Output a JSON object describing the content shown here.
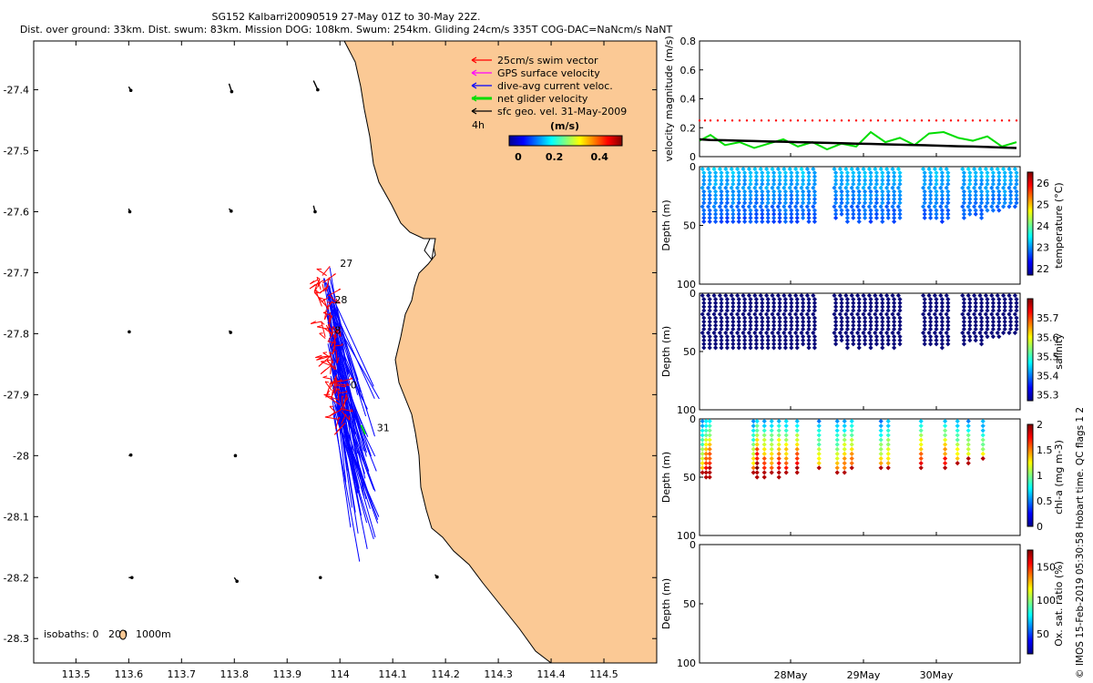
{
  "header": {
    "title_line1": "SG152 Kalbarri20090519 27-May 01Z to 30-May 22Z.",
    "title_line2": "Dist. over ground: 33km. Dist. swum: 83km. Mission DOG: 108km. Swum: 254km. Gliding 24cm/s 335T COG-DAC=NaNcm/s NaNT"
  },
  "credit": "© IMOS 15-Feb-2019 05:30:58 Hobart time. QC flags 1 2",
  "colors": {
    "land": "#fbc995",
    "swim": "#ff0000",
    "gps": "#ff00ff",
    "current": "#0000ff",
    "net": "#00dd00",
    "geo": "#000000",
    "threshold": "#ff0000"
  },
  "chart_data": [
    {
      "type": "scatter",
      "name": "track-map",
      "xlim": [
        113.42,
        114.6
      ],
      "ylim": [
        -28.34,
        -27.32
      ],
      "xticks": [
        "113.5",
        "113.6",
        "113.7",
        "113.8",
        "113.9",
        "114",
        "114.1",
        "114.2",
        "114.3",
        "114.4",
        "114.5"
      ],
      "yticks": [
        "-27.4",
        "-27.5",
        "-27.6",
        "-27.7",
        "-27.8",
        "-27.9",
        "-28",
        "-28.1",
        "-28.2",
        "-28.3"
      ],
      "legend": {
        "placement": "top-right",
        "entries": [
          "25cm/s swim vector",
          "GPS surface velocity",
          "dive-avg current veloc.",
          "net glider velocity",
          "sfc geo. vel. 31-May-2009"
        ],
        "scale_label": "4h",
        "colorbar_title": "(m/s)",
        "colorbar_ticks": [
          "0",
          "0.2",
          "0.4"
        ]
      },
      "isobaths_label": "isobaths: 0",
      "isobath_marks": [
        "200",
        "1000m"
      ],
      "day_labels": [
        {
          "text": "27",
          "lon": 114.0,
          "lat": -27.69
        },
        {
          "text": "28",
          "lon": 113.99,
          "lat": -27.75
        },
        {
          "text": "8",
          "lon": 113.99,
          "lat": -27.8
        },
        {
          "text": "0",
          "lon": 114.02,
          "lat": -27.89
        },
        {
          "text": "31",
          "lon": 114.07,
          "lat": -27.96
        }
      ],
      "net_velocity": {
        "from": [
          114.04,
          -27.95
        ],
        "to": [
          114.048,
          -27.965
        ]
      },
      "geo_vectors": [
        {
          "lon": 113.6,
          "lat": -27.395,
          "u": 0.004,
          "v": -0.006
        },
        {
          "lon": 113.79,
          "lat": -27.39,
          "u": 0.005,
          "v": -0.013
        },
        {
          "lon": 113.95,
          "lat": -27.385,
          "u": 0.008,
          "v": -0.015
        },
        {
          "lon": 113.6,
          "lat": -27.595,
          "u": 0.002,
          "v": -0.005
        },
        {
          "lon": 113.79,
          "lat": -27.595,
          "u": 0.004,
          "v": -0.004
        },
        {
          "lon": 113.95,
          "lat": -27.59,
          "u": 0.003,
          "v": -0.01
        },
        {
          "lon": 113.6,
          "lat": -27.795,
          "u": 0.001,
          "v": -0.002
        },
        {
          "lon": 113.79,
          "lat": -27.795,
          "u": 0.003,
          "v": -0.003
        },
        {
          "lon": 113.6,
          "lat": -28.0,
          "u": 0.004,
          "v": 0.001
        },
        {
          "lon": 113.8,
          "lat": -28.0,
          "u": 0.002,
          "v": 0.0
        },
        {
          "lon": 113.6,
          "lat": -28.2,
          "u": 0.006,
          "v": 0.0
        },
        {
          "lon": 113.8,
          "lat": -28.2,
          "u": 0.005,
          "v": -0.006
        },
        {
          "lon": 113.96,
          "lat": -28.2,
          "u": 0.003,
          "v": 0.0
        },
        {
          "lon": 114.18,
          "lat": -28.195,
          "u": 0.004,
          "v": -0.004
        }
      ]
    },
    {
      "type": "line",
      "name": "velocity-magnitude",
      "ylabel": "velocity magnitude (m/s)",
      "ylim": [
        0,
        0.8
      ],
      "yticks": [
        "0",
        "0.2",
        "0.4",
        "0.6",
        "0.8"
      ],
      "xlim": [
        0,
        4.4
      ],
      "x": [
        0,
        0.15,
        0.35,
        0.55,
        0.75,
        0.95,
        1.15,
        1.35,
        1.55,
        1.75,
        1.95,
        2.15,
        2.35,
        2.55,
        2.75,
        2.95,
        3.15,
        3.35,
        3.55,
        3.75,
        3.95,
        4.15,
        4.35
      ],
      "series": [
        {
          "values": [
            0.11,
            0.15,
            0.08,
            0.1,
            0.06,
            0.09,
            0.12,
            0.07,
            0.1,
            0.05,
            0.09,
            0.07,
            0.17,
            0.1,
            0.13,
            0.08,
            0.16,
            0.17,
            0.13,
            0.11,
            0.14,
            0.07,
            0.1
          ]
        },
        {
          "values": [
            0.12,
            0.115,
            0.113,
            0.11,
            0.108,
            0.105,
            0.103,
            0.1,
            0.098,
            0.095,
            0.093,
            0.09,
            0.088,
            0.085,
            0.083,
            0.08,
            0.078,
            0.075,
            0.072,
            0.07,
            0.067,
            0.063,
            0.06
          ]
        },
        {
          "values": [
            0.25,
            0.25,
            0.25,
            0.25,
            0.25,
            0.25,
            0.25,
            0.25,
            0.25,
            0.25,
            0.25,
            0.25,
            0.25,
            0.25,
            0.25,
            0.25,
            0.25,
            0.25,
            0.25,
            0.25,
            0.25,
            0.25,
            0.25
          ]
        }
      ]
    },
    {
      "type": "scatter",
      "name": "temperature-profile",
      "ylabel": "Depth (m)",
      "colorbar_label": "temperature (°C)",
      "ylim": [
        100,
        0
      ],
      "yticks": [
        "0",
        "50",
        "100"
      ],
      "colorbar_ticks": [
        "22",
        "23",
        "24",
        "25",
        "26"
      ],
      "clim": [
        21.7,
        26.5
      ],
      "profiles": [
        {
          "x": 0.05,
          "max": 50,
          "v": 22.6
        },
        {
          "x": 0.13,
          "max": 50,
          "v": 22.6
        },
        {
          "x": 0.21,
          "max": 48,
          "v": 22.7
        },
        {
          "x": 0.29,
          "max": 50,
          "v": 22.6
        },
        {
          "x": 0.37,
          "max": 48,
          "v": 22.6
        },
        {
          "x": 0.45,
          "max": 48,
          "v": 22.7
        },
        {
          "x": 0.53,
          "max": 48,
          "v": 22.6
        },
        {
          "x": 0.61,
          "max": 50,
          "v": 22.6
        },
        {
          "x": 0.69,
          "max": 47,
          "v": 22.7
        },
        {
          "x": 0.77,
          "max": 48,
          "v": 22.6
        },
        {
          "x": 0.85,
          "max": 50,
          "v": 22.6
        },
        {
          "x": 0.93,
          "max": 48,
          "v": 22.7
        },
        {
          "x": 1.01,
          "max": 48,
          "v": 22.6
        },
        {
          "x": 1.09,
          "max": 50,
          "v": 22.6
        },
        {
          "x": 1.17,
          "max": 47,
          "v": 22.7
        },
        {
          "x": 1.25,
          "max": 48,
          "v": 22.6
        },
        {
          "x": 1.33,
          "max": 48,
          "v": 22.6
        },
        {
          "x": 1.41,
          "max": 45,
          "v": 22.7
        },
        {
          "x": 1.49,
          "max": 48,
          "v": 22.6
        },
        {
          "x": 1.57,
          "max": 47,
          "v": 22.6
        },
        {
          "x": 1.86,
          "max": 45,
          "v": 22.6
        },
        {
          "x": 1.94,
          "max": 42,
          "v": 22.6
        },
        {
          "x": 2.02,
          "max": 48,
          "v": 22.7
        },
        {
          "x": 2.1,
          "max": 45,
          "v": 22.6
        },
        {
          "x": 2.18,
          "max": 47,
          "v": 22.6
        },
        {
          "x": 2.26,
          "max": 45,
          "v": 22.7
        },
        {
          "x": 2.34,
          "max": 47,
          "v": 22.6
        },
        {
          "x": 2.42,
          "max": 45,
          "v": 22.6
        },
        {
          "x": 2.5,
          "max": 47,
          "v": 22.7
        },
        {
          "x": 2.58,
          "max": 45,
          "v": 22.6
        },
        {
          "x": 2.66,
          "max": 47,
          "v": 22.6
        },
        {
          "x": 2.74,
          "max": 45,
          "v": 22.7
        },
        {
          "x": 3.08,
          "max": 45,
          "v": 22.6
        },
        {
          "x": 3.16,
          "max": 45,
          "v": 22.6
        },
        {
          "x": 3.24,
          "max": 45,
          "v": 22.7
        },
        {
          "x": 3.32,
          "max": 47,
          "v": 22.6
        },
        {
          "x": 3.4,
          "max": 45,
          "v": 22.6
        },
        {
          "x": 3.62,
          "max": 45,
          "v": 22.6
        },
        {
          "x": 3.7,
          "max": 43,
          "v": 22.7
        },
        {
          "x": 3.78,
          "max": 43,
          "v": 22.6
        },
        {
          "x": 3.86,
          "max": 45,
          "v": 22.6
        },
        {
          "x": 3.94,
          "max": 40,
          "v": 22.7
        },
        {
          "x": 4.02,
          "max": 40,
          "v": 22.6
        },
        {
          "x": 4.1,
          "max": 38,
          "v": 22.6
        },
        {
          "x": 4.18,
          "max": 35,
          "v": 22.7
        },
        {
          "x": 4.26,
          "max": 35,
          "v": 22.6
        },
        {
          "x": 4.34,
          "max": 35,
          "v": 22.6
        }
      ]
    },
    {
      "type": "scatter",
      "name": "salinity-profile",
      "ylabel": "Depth (m)",
      "colorbar_label": "salinity",
      "ylim": [
        100,
        0
      ],
      "yticks": [
        "0",
        "50",
        "100"
      ],
      "colorbar_ticks": [
        "35.3",
        "35.4",
        "35.5",
        "35.6",
        "35.7"
      ],
      "clim": [
        35.27,
        35.8
      ],
      "profiles": [
        {
          "x": 0.05,
          "max": 50,
          "v": 35.31
        },
        {
          "x": 0.13,
          "max": 50,
          "v": 35.31
        },
        {
          "x": 0.21,
          "max": 48,
          "v": 35.31
        },
        {
          "x": 0.29,
          "max": 50,
          "v": 35.31
        },
        {
          "x": 0.37,
          "max": 48,
          "v": 35.31
        },
        {
          "x": 0.45,
          "max": 48,
          "v": 35.31
        },
        {
          "x": 0.53,
          "max": 48,
          "v": 35.31
        },
        {
          "x": 0.61,
          "max": 50,
          "v": 35.31
        },
        {
          "x": 0.69,
          "max": 47,
          "v": 35.31
        },
        {
          "x": 0.77,
          "max": 48,
          "v": 35.31
        },
        {
          "x": 0.85,
          "max": 50,
          "v": 35.31
        },
        {
          "x": 0.93,
          "max": 48,
          "v": 35.31
        },
        {
          "x": 1.01,
          "max": 48,
          "v": 35.31
        },
        {
          "x": 1.09,
          "max": 50,
          "v": 35.31
        },
        {
          "x": 1.17,
          "max": 47,
          "v": 35.31
        },
        {
          "x": 1.25,
          "max": 48,
          "v": 35.31
        },
        {
          "x": 1.33,
          "max": 48,
          "v": 35.31
        },
        {
          "x": 1.41,
          "max": 45,
          "v": 35.31
        },
        {
          "x": 1.49,
          "max": 48,
          "v": 35.31
        },
        {
          "x": 1.57,
          "max": 47,
          "v": 35.31
        },
        {
          "x": 1.86,
          "max": 45,
          "v": 35.31
        },
        {
          "x": 1.94,
          "max": 42,
          "v": 35.31
        },
        {
          "x": 2.02,
          "max": 48,
          "v": 35.31
        },
        {
          "x": 2.1,
          "max": 45,
          "v": 35.31
        },
        {
          "x": 2.18,
          "max": 47,
          "v": 35.31
        },
        {
          "x": 2.26,
          "max": 45,
          "v": 35.31
        },
        {
          "x": 2.34,
          "max": 47,
          "v": 35.31
        },
        {
          "x": 2.42,
          "max": 45,
          "v": 35.31
        },
        {
          "x": 2.5,
          "max": 47,
          "v": 35.31
        },
        {
          "x": 2.58,
          "max": 45,
          "v": 35.31
        },
        {
          "x": 2.66,
          "max": 47,
          "v": 35.31
        },
        {
          "x": 2.74,
          "max": 45,
          "v": 35.31
        },
        {
          "x": 3.08,
          "max": 45,
          "v": 35.31
        },
        {
          "x": 3.16,
          "max": 45,
          "v": 35.31
        },
        {
          "x": 3.24,
          "max": 45,
          "v": 35.31
        },
        {
          "x": 3.32,
          "max": 47,
          "v": 35.31
        },
        {
          "x": 3.4,
          "max": 45,
          "v": 35.31
        },
        {
          "x": 3.62,
          "max": 45,
          "v": 35.31
        },
        {
          "x": 3.7,
          "max": 43,
          "v": 35.31
        },
        {
          "x": 3.78,
          "max": 43,
          "v": 35.31
        },
        {
          "x": 3.86,
          "max": 45,
          "v": 35.31
        },
        {
          "x": 3.94,
          "max": 40,
          "v": 35.31
        },
        {
          "x": 4.02,
          "max": 40,
          "v": 35.31
        },
        {
          "x": 4.1,
          "max": 38,
          "v": 35.31
        },
        {
          "x": 4.18,
          "max": 35,
          "v": 35.31
        },
        {
          "x": 4.26,
          "max": 35,
          "v": 35.31
        },
        {
          "x": 4.34,
          "max": 35,
          "v": 35.31
        }
      ]
    },
    {
      "type": "scatter",
      "name": "chlorophyll-profile",
      "ylabel": "Depth (m)",
      "colorbar_label": "chl-a (mg m-3)",
      "ylim": [
        100,
        0
      ],
      "yticks": [
        "0",
        "50",
        "100"
      ],
      "colorbar_ticks": [
        "0",
        "0.5",
        "1",
        "1.5",
        "2"
      ],
      "clim": [
        0,
        2
      ],
      "profiles": [
        {
          "x": 0.05,
          "max": 48,
          "v": 0.9
        },
        {
          "x": 0.1,
          "max": 50,
          "v": 1.2
        },
        {
          "x": 0.15,
          "max": 50,
          "v": 1.3
        },
        {
          "x": 0.75,
          "max": 48,
          "v": 1.0
        },
        {
          "x": 0.8,
          "max": 50,
          "v": 1.4
        },
        {
          "x": 0.9,
          "max": 50,
          "v": 1.2
        },
        {
          "x": 1.0,
          "max": 48,
          "v": 1.1
        },
        {
          "x": 1.1,
          "max": 50,
          "v": 1.3
        },
        {
          "x": 1.2,
          "max": 48,
          "v": 1.2
        },
        {
          "x": 1.35,
          "max": 48,
          "v": 1.3
        },
        {
          "x": 1.65,
          "max": 45,
          "v": 1.0
        },
        {
          "x": 1.9,
          "max": 48,
          "v": 1.0
        },
        {
          "x": 2.0,
          "max": 48,
          "v": 1.1
        },
        {
          "x": 2.1,
          "max": 45,
          "v": 1.2
        },
        {
          "x": 2.5,
          "max": 45,
          "v": 1.0
        },
        {
          "x": 2.6,
          "max": 43,
          "v": 1.1
        },
        {
          "x": 3.05,
          "max": 45,
          "v": 1.3
        },
        {
          "x": 3.38,
          "max": 45,
          "v": 1.3
        },
        {
          "x": 3.55,
          "max": 40,
          "v": 1.1
        },
        {
          "x": 3.7,
          "max": 38,
          "v": 1.1
        },
        {
          "x": 3.9,
          "max": 35,
          "v": 1.0
        }
      ]
    },
    {
      "type": "scatter",
      "name": "oxygen-saturation",
      "ylabel": "Depth (m)",
      "colorbar_label": "Ox. sat. ratio (%)",
      "ylim": [
        100,
        0
      ],
      "yticks": [
        "0",
        "50",
        "100"
      ],
      "xticks": [
        "28May",
        "29May",
        "30May"
      ],
      "colorbar_ticks": [
        "50",
        "100",
        "150"
      ],
      "clim": [
        20,
        175
      ],
      "profiles": []
    }
  ]
}
